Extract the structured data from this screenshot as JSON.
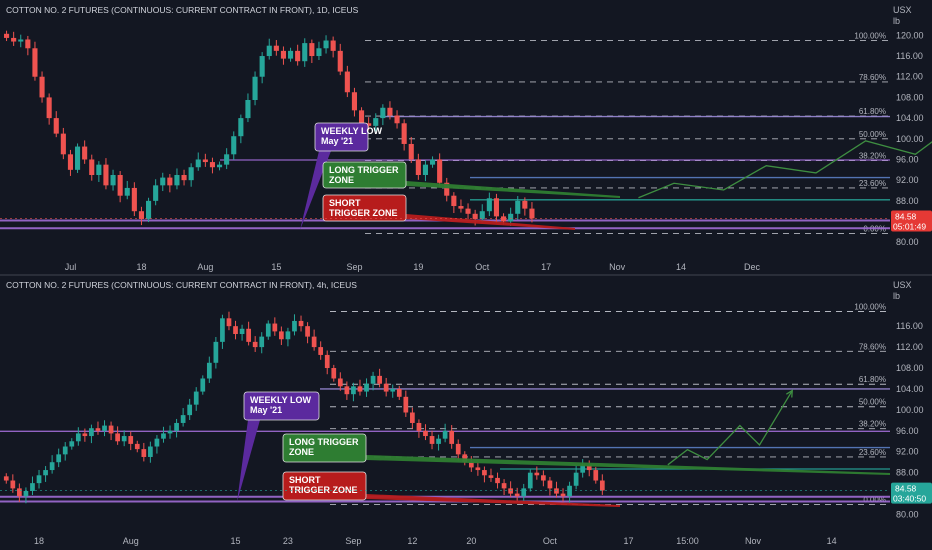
{
  "app": {
    "accent_green": "#26a69a",
    "accent_red": "#ef5350",
    "purple": "#a06cd5",
    "blue": "#5b7fc4"
  },
  "chart_data": [
    {
      "type": "candlestick",
      "title": "COTTON NO. 2 FUTURES (CONTINUOUS: CURRENT CONTRACT IN FRONT), 1D, ICEUS",
      "unit_line1": "USX",
      "unit_line2": "lb",
      "ylim": [
        78.5,
        122
      ],
      "y_ticks": [
        "120.00",
        "116.00",
        "112.00",
        "108.00",
        "104.00",
        "100.00",
        "96.00",
        "92.00",
        "88.00",
        "84.00",
        "80.00"
      ],
      "x_ticks": [
        {
          "label": "Jul",
          "i": 9
        },
        {
          "label": "18",
          "i": 19
        },
        {
          "label": "Aug",
          "i": 28
        },
        {
          "label": "15",
          "i": 38
        },
        {
          "label": "Sep",
          "i": 49
        },
        {
          "label": "19",
          "i": 58
        },
        {
          "label": "Oct",
          "i": 67
        },
        {
          "label": "17",
          "i": 76
        },
        {
          "label": "Nov",
          "i": 86
        },
        {
          "label": "14",
          "i": 95
        },
        {
          "label": "Dec",
          "i": 105
        }
      ],
      "n_slots": 116,
      "closes": [
        119.5,
        118.8,
        119.2,
        117.5,
        112.0,
        108.0,
        104.0,
        101.0,
        97.0,
        94.0,
        98.5,
        96.0,
        93.0,
        95.0,
        91.0,
        93.0,
        89.0,
        90.5,
        86.0,
        84.5,
        88.0,
        91.0,
        92.5,
        91.0,
        93.0,
        92.0,
        94.5,
        96.0,
        95.5,
        94.5,
        95.0,
        97.0,
        100.5,
        104.0,
        107.5,
        112.0,
        116.0,
        118.0,
        117.0,
        115.5,
        117.0,
        115.0,
        118.5,
        116.0,
        117.5,
        119.0,
        117.0,
        113.0,
        109.0,
        105.5,
        103.0,
        102.5,
        104.0,
        106.0,
        104.5,
        103.0,
        99.0,
        96.0,
        93.0,
        95.0,
        96.0,
        91.5,
        89.0,
        87.0,
        86.5,
        85.5,
        84.5,
        86.0,
        88.5,
        85.0,
        84.0,
        85.5,
        88.0,
        86.5,
        84.6
      ],
      "current_price": "84.58",
      "countdown": "05:01:49",
      "fib": [
        {
          "label": "100.00%",
          "price": 119.0
        },
        {
          "label": "78.60%",
          "price": 111.0
        },
        {
          "label": "61.80%",
          "price": 104.4
        },
        {
          "label": "50.00%",
          "price": 100.0
        },
        {
          "label": "38.20%",
          "price": 95.8
        },
        {
          "label": "23.60%",
          "price": 90.5
        },
        {
          "label": "0.00%",
          "price": 81.7
        }
      ],
      "projection": [
        [
          89,
          88.6
        ],
        [
          94,
          91.4
        ],
        [
          101,
          90.1
        ],
        [
          107,
          94.8
        ],
        [
          114,
          93.4
        ],
        [
          121,
          99.6
        ],
        [
          128,
          97.0
        ],
        [
          134,
          103.1
        ]
      ],
      "callouts": {
        "weekly_low": [
          "WEEKLY LOW",
          "May '21"
        ],
        "long": [
          "LONG TRIGGER",
          "ZONE"
        ],
        "short": [
          "SHORT",
          "TRIGGER ZONE"
        ]
      }
    },
    {
      "type": "candlestick",
      "title": "COTTON NO. 2 FUTURES (CONTINUOUS: CURRENT CONTRACT IN FRONT), 4h, ICEUS",
      "unit_line1": "USX",
      "unit_line2": "lb",
      "ylim": [
        78.0,
        121.0
      ],
      "y_ticks": [
        "116.00",
        "112.00",
        "108.00",
        "104.00",
        "100.00",
        "96.00",
        "92.00",
        "88.00",
        "84.00",
        "80.00"
      ],
      "x_ticks": [
        {
          "label": "18",
          "i": 5
        },
        {
          "label": "Aug",
          "i": 19
        },
        {
          "label": "15",
          "i": 35
        },
        {
          "label": "23",
          "i": 43
        },
        {
          "label": "Sep",
          "i": 53
        },
        {
          "label": "12",
          "i": 62
        },
        {
          "label": "20",
          "i": 71
        },
        {
          "label": "Oct",
          "i": 83
        },
        {
          "label": "17",
          "i": 95
        },
        {
          "label": "15:00",
          "i": 104
        },
        {
          "label": "Nov",
          "i": 114
        },
        {
          "label": "14",
          "i": 126
        }
      ],
      "n_slots": 135,
      "closes": [
        86.5,
        85.0,
        83.5,
        84.5,
        86.0,
        87.5,
        88.5,
        90.0,
        91.5,
        93.0,
        94.0,
        95.5,
        95.0,
        96.5,
        96.0,
        97.0,
        95.5,
        94.0,
        95.0,
        93.5,
        92.5,
        91.0,
        93.0,
        94.5,
        95.5,
        96.0,
        97.5,
        99.0,
        101.0,
        103.5,
        106.0,
        109.0,
        113.0,
        117.5,
        116.0,
        114.5,
        115.5,
        113.0,
        112.0,
        114.0,
        116.5,
        115.0,
        113.5,
        115.0,
        117.0,
        116.0,
        114.0,
        112.0,
        110.5,
        108.0,
        106.0,
        104.5,
        103.0,
        104.5,
        103.5,
        105.0,
        106.5,
        105.0,
        103.5,
        104.0,
        102.5,
        99.5,
        97.5,
        96.0,
        95.0,
        93.5,
        94.5,
        96.0,
        93.5,
        91.5,
        90.0,
        89.0,
        88.5,
        87.5,
        87.0,
        86.0,
        85.0,
        84.0,
        83.5,
        85.0,
        88.0,
        87.5,
        86.5,
        85.0,
        84.0,
        83.5,
        85.5,
        88.0,
        89.5,
        88.5,
        86.5,
        84.6
      ],
      "current_price": "84.58",
      "countdown": "03:40:50",
      "fib": [
        {
          "label": "100.00%",
          "price": 118.8
        },
        {
          "label": "78.60%",
          "price": 111.2
        },
        {
          "label": "61.80%",
          "price": 104.9
        },
        {
          "label": "50.00%",
          "price": 100.6
        },
        {
          "label": "38.20%",
          "price": 96.4
        },
        {
          "label": "23.60%",
          "price": 91.0
        },
        {
          "label": "0.00%",
          "price": 81.9
        }
      ],
      "projection": [
        [
          101,
          89.5
        ],
        [
          104,
          92.4
        ],
        [
          107,
          90.5
        ],
        [
          112,
          97.0
        ],
        [
          115,
          93.3
        ],
        [
          120,
          103.7
        ]
      ],
      "callouts": {
        "weekly_low": [
          "WEEKLY LOW",
          "May '21"
        ],
        "long": [
          "LONG TRIGGER",
          "ZONE"
        ],
        "short": [
          "SHORT",
          "TRIGGER ZONE"
        ]
      }
    }
  ]
}
